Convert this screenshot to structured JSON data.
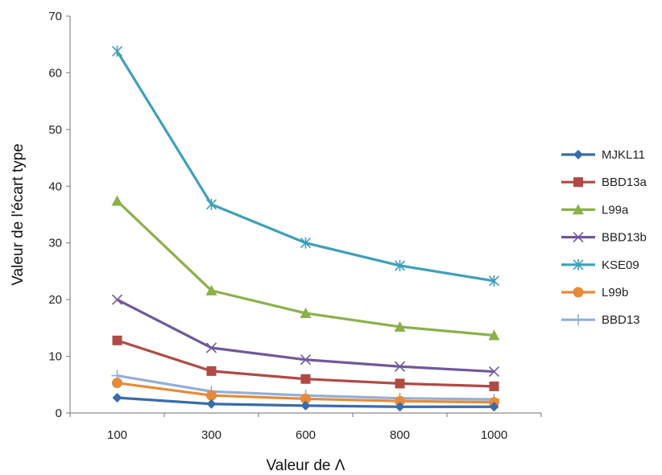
{
  "chart_data": {
    "type": "line",
    "title": "",
    "xlabel": "Valeur de Λ",
    "ylabel": "Valeur de l'écart type",
    "categories": [
      "100",
      "300",
      "600",
      "800",
      "1000"
    ],
    "ylim": [
      0,
      70
    ],
    "yticks": [
      "0",
      "10",
      "20",
      "30",
      "40",
      "50",
      "60",
      "70"
    ],
    "grid": false,
    "legend_position": "right",
    "series": [
      {
        "name": "MJKL11",
        "marker": "diamond",
        "color": "#3A6CA8",
        "values": [
          2.7,
          1.6,
          1.3,
          1.1,
          1.1
        ]
      },
      {
        "name": "BBD13a",
        "marker": "square",
        "color": "#B04A45",
        "values": [
          12.8,
          7.4,
          6.0,
          5.2,
          4.7
        ]
      },
      {
        "name": "L99a",
        "marker": "triangle",
        "color": "#8CB04A",
        "values": [
          37.4,
          21.6,
          17.6,
          15.2,
          13.7
        ]
      },
      {
        "name": "BBD13b",
        "marker": "x",
        "color": "#71589A",
        "values": [
          20.0,
          11.5,
          9.4,
          8.2,
          7.3
        ]
      },
      {
        "name": "KSE09",
        "marker": "star",
        "color": "#3EA0B8",
        "values": [
          63.8,
          36.8,
          30.0,
          26.0,
          23.3
        ]
      },
      {
        "name": "L99b",
        "marker": "circle",
        "color": "#E58B3A",
        "values": [
          5.3,
          3.1,
          2.5,
          2.1,
          1.9
        ]
      },
      {
        "name": "BBD13",
        "marker": "plus",
        "color": "#95AED5",
        "values": [
          6.6,
          3.8,
          3.1,
          2.6,
          2.4
        ]
      }
    ]
  }
}
